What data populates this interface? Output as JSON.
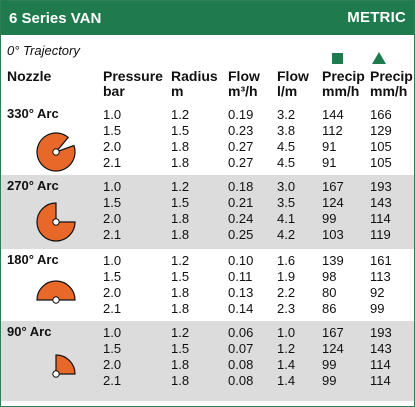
{
  "title": "6 Series VAN",
  "metric_label": "METRIC",
  "trajectory": "0° Trajectory",
  "columns": [
    {
      "line1": "Nozzle",
      "line2": ""
    },
    {
      "line1": "Pressure",
      "line2": "bar"
    },
    {
      "line1": "Radius",
      "line2": "m"
    },
    {
      "line1": "Flow",
      "line2": "m³/h"
    },
    {
      "line1": "Flow",
      "line2": "l/m"
    },
    {
      "line1": "Precip",
      "line2": "mm/h"
    },
    {
      "line1": "Precip",
      "line2": "mm/h"
    }
  ],
  "colors": {
    "header_green": "#1f7a4d",
    "orange": "#e8682a",
    "band_gray": "#dcdcdc"
  },
  "groups": [
    {
      "arc": "330° Arc",
      "angle": 330,
      "rows": [
        [
          "1.0",
          "1.2",
          "0.19",
          "3.2",
          "144",
          "166"
        ],
        [
          "1.5",
          "1.5",
          "0.23",
          "3.8",
          "112",
          "129"
        ],
        [
          "2.0",
          "1.8",
          "0.27",
          "4.5",
          "91",
          "105"
        ],
        [
          "2.1",
          "1.8",
          "0.27",
          "4.5",
          "91",
          "105"
        ]
      ]
    },
    {
      "arc": "270° Arc",
      "angle": 270,
      "rows": [
        [
          "1.0",
          "1.2",
          "0.18",
          "3.0",
          "167",
          "193"
        ],
        [
          "1.5",
          "1.5",
          "0.21",
          "3.5",
          "124",
          "143"
        ],
        [
          "2.0",
          "1.8",
          "0.24",
          "4.1",
          "99",
          "114"
        ],
        [
          "2.1",
          "1.8",
          "0.25",
          "4.2",
          "103",
          "119"
        ]
      ]
    },
    {
      "arc": "180° Arc",
      "angle": 180,
      "rows": [
        [
          "1.0",
          "1.2",
          "0.10",
          "1.6",
          "139",
          "161"
        ],
        [
          "1.5",
          "1.5",
          "0.11",
          "1.9",
          "98",
          "113"
        ],
        [
          "2.0",
          "1.8",
          "0.13",
          "2.2",
          "80",
          "92"
        ],
        [
          "2.1",
          "1.8",
          "0.14",
          "2.3",
          "86",
          "99"
        ]
      ]
    },
    {
      "arc": "90° Arc",
      "angle": 90,
      "rows": [
        [
          "1.0",
          "1.2",
          "0.06",
          "1.0",
          "167",
          "193"
        ],
        [
          "1.5",
          "1.5",
          "0.07",
          "1.2",
          "124",
          "143"
        ],
        [
          "2.0",
          "1.8",
          "0.08",
          "1.4",
          "99",
          "114"
        ],
        [
          "2.1",
          "1.8",
          "0.08",
          "1.4",
          "99",
          "114"
        ]
      ]
    }
  ]
}
